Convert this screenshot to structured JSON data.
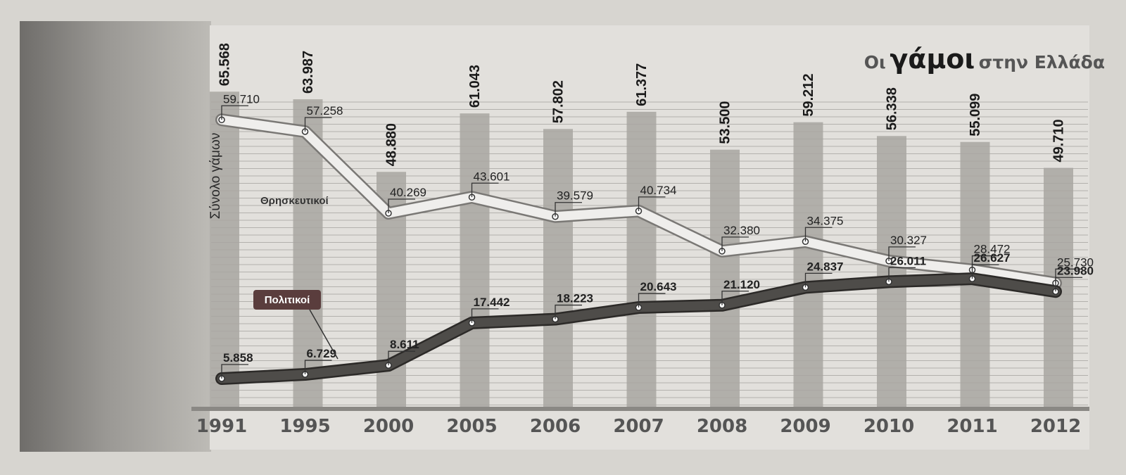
{
  "chart_data": {
    "type": "bar+line",
    "title": {
      "pre": "Οι",
      "main": "γάμοι",
      "post": "στην Ελλάδα"
    },
    "ylabel": "Σύνολο γάμων",
    "categories": [
      "1991",
      "1995",
      "2000",
      "2005",
      "2006",
      "2007",
      "2008",
      "2009",
      "2010",
      "2011",
      "2012"
    ],
    "ylim": [
      0,
      70000
    ],
    "grid": true,
    "series": [
      {
        "kind": "bar",
        "label_strings": [
          "65.568",
          "63.987",
          "48.880",
          "61.043",
          "57.802",
          "61.377",
          "53.500",
          "59.212",
          "56.338",
          "55.099",
          "49.710"
        ],
        "values": [
          65568,
          63987,
          48880,
          61043,
          57802,
          61377,
          53500,
          59212,
          56338,
          55099,
          49710
        ]
      },
      {
        "kind": "line",
        "name": "Θρησκευτικοί",
        "label_strings": [
          "59.710",
          "57.258",
          "40.269",
          "43.601",
          "39.579",
          "40.734",
          "32.380",
          "34.375",
          "30.327",
          "28.472",
          "25.730"
        ],
        "values": [
          59710,
          57258,
          40269,
          43601,
          39579,
          40734,
          32380,
          34375,
          30327,
          28472,
          25730
        ]
      },
      {
        "kind": "line",
        "name": "Πολιτικοί",
        "label_strings": [
          "5.858",
          "6.729",
          "8.611",
          "17.442",
          "18.223",
          "20.643",
          "21.120",
          "24.837",
          "26.011",
          "26.627",
          "23.980"
        ],
        "values": [
          5858,
          6729,
          8611,
          17442,
          18223,
          20643,
          21120,
          24837,
          26011,
          26627,
          23980
        ]
      }
    ],
    "colors": {
      "panel": "#e2e0dc",
      "bar": "#a8a6a1",
      "gridline": "#8e8c88",
      "religious_band": "#efeeec",
      "civil_band": "#4e4c49",
      "label_tag": "#5a3d3d",
      "year_text": "#555555"
    }
  }
}
